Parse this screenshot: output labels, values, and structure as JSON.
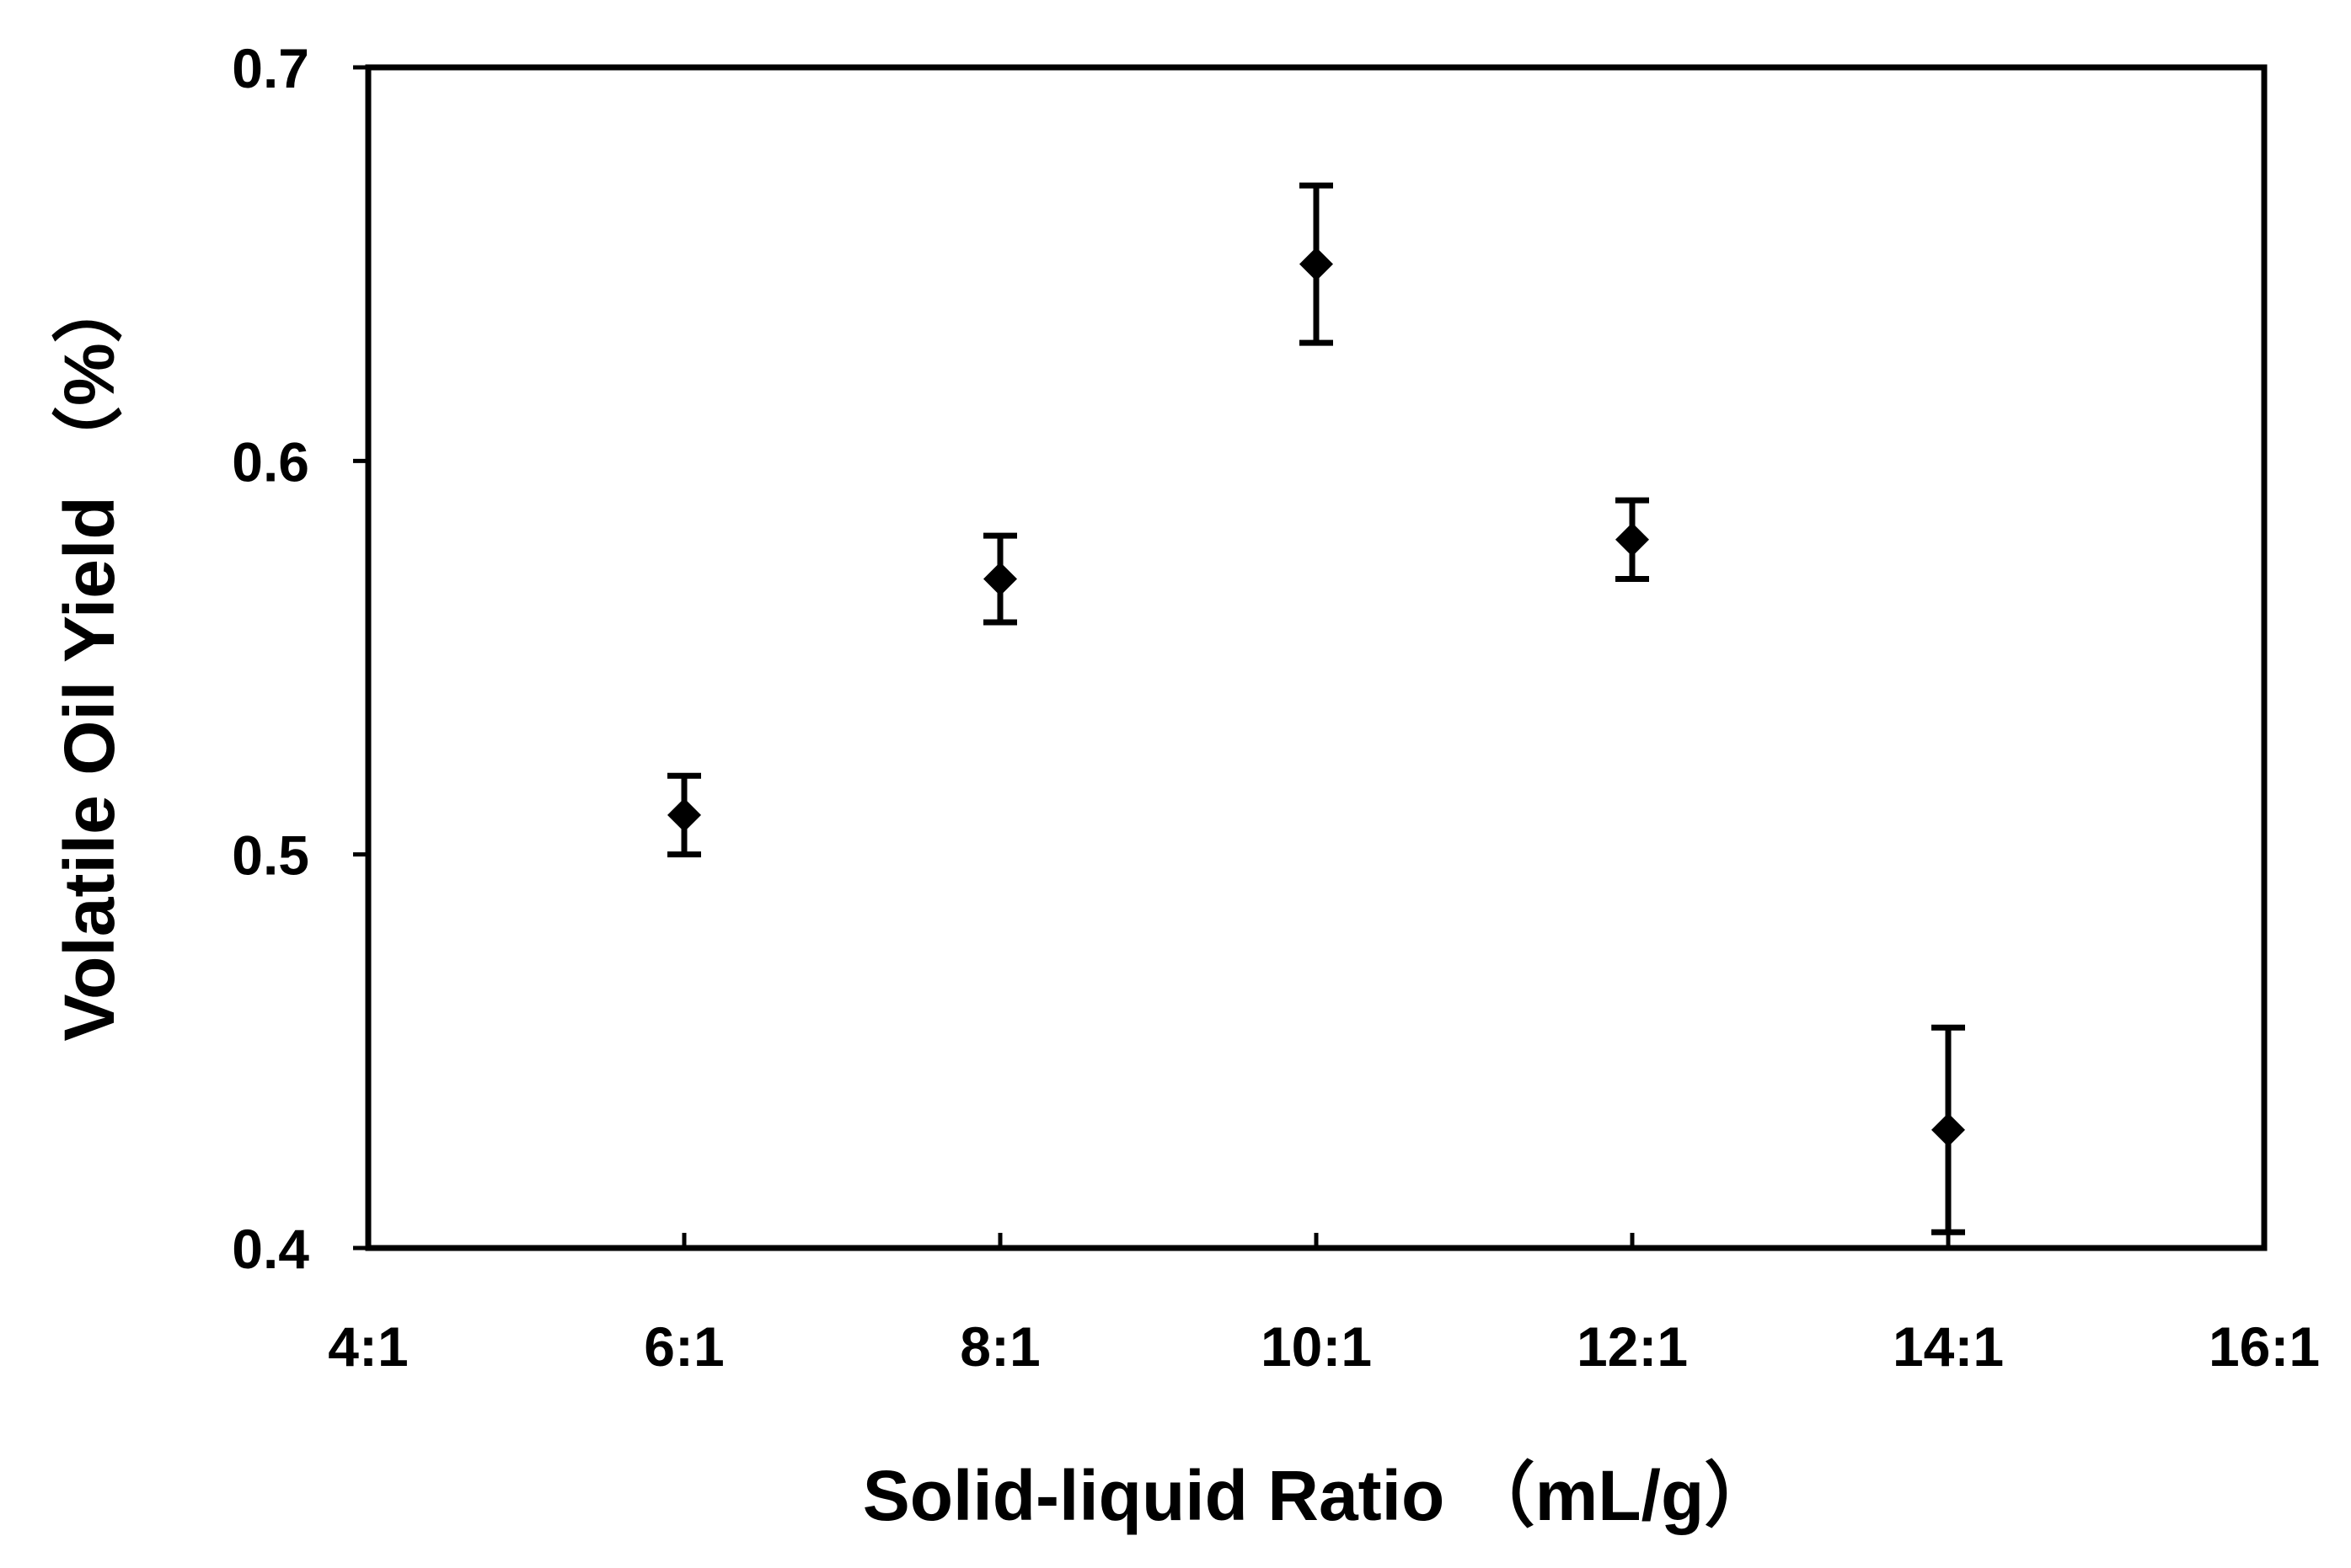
{
  "chart_data": {
    "type": "scatter",
    "title": "",
    "xlabel": "Solid-liquid Ratio （mL/g）",
    "ylabel": "Volatile Oil Yield （%）",
    "x_tick_labels": [
      "4:1",
      "6:1",
      "8:1",
      "10:1",
      "12:1",
      "14:1",
      "16:1"
    ],
    "y_tick_labels": [
      "0.4",
      "0.5",
      "0.6",
      "0.7"
    ],
    "xlim": [
      4,
      16
    ],
    "ylim": [
      0.4,
      0.7
    ],
    "x_ticks": [
      4,
      6,
      8,
      10,
      12,
      14,
      16
    ],
    "y_ticks": [
      0.4,
      0.5,
      0.6,
      0.7
    ],
    "grid": false,
    "legend": "none",
    "marker": "diamond",
    "color": "#000000",
    "series": [
      {
        "x_labels": [
          "6:1",
          "8:1",
          "10:1",
          "12:1",
          "14:1"
        ],
        "x": [
          6,
          8,
          10,
          12,
          14
        ],
        "values": [
          0.51,
          0.57,
          0.65,
          0.58,
          0.43
        ],
        "error": [
          0.01,
          0.011,
          0.02,
          0.01,
          0.026
        ]
      }
    ]
  }
}
